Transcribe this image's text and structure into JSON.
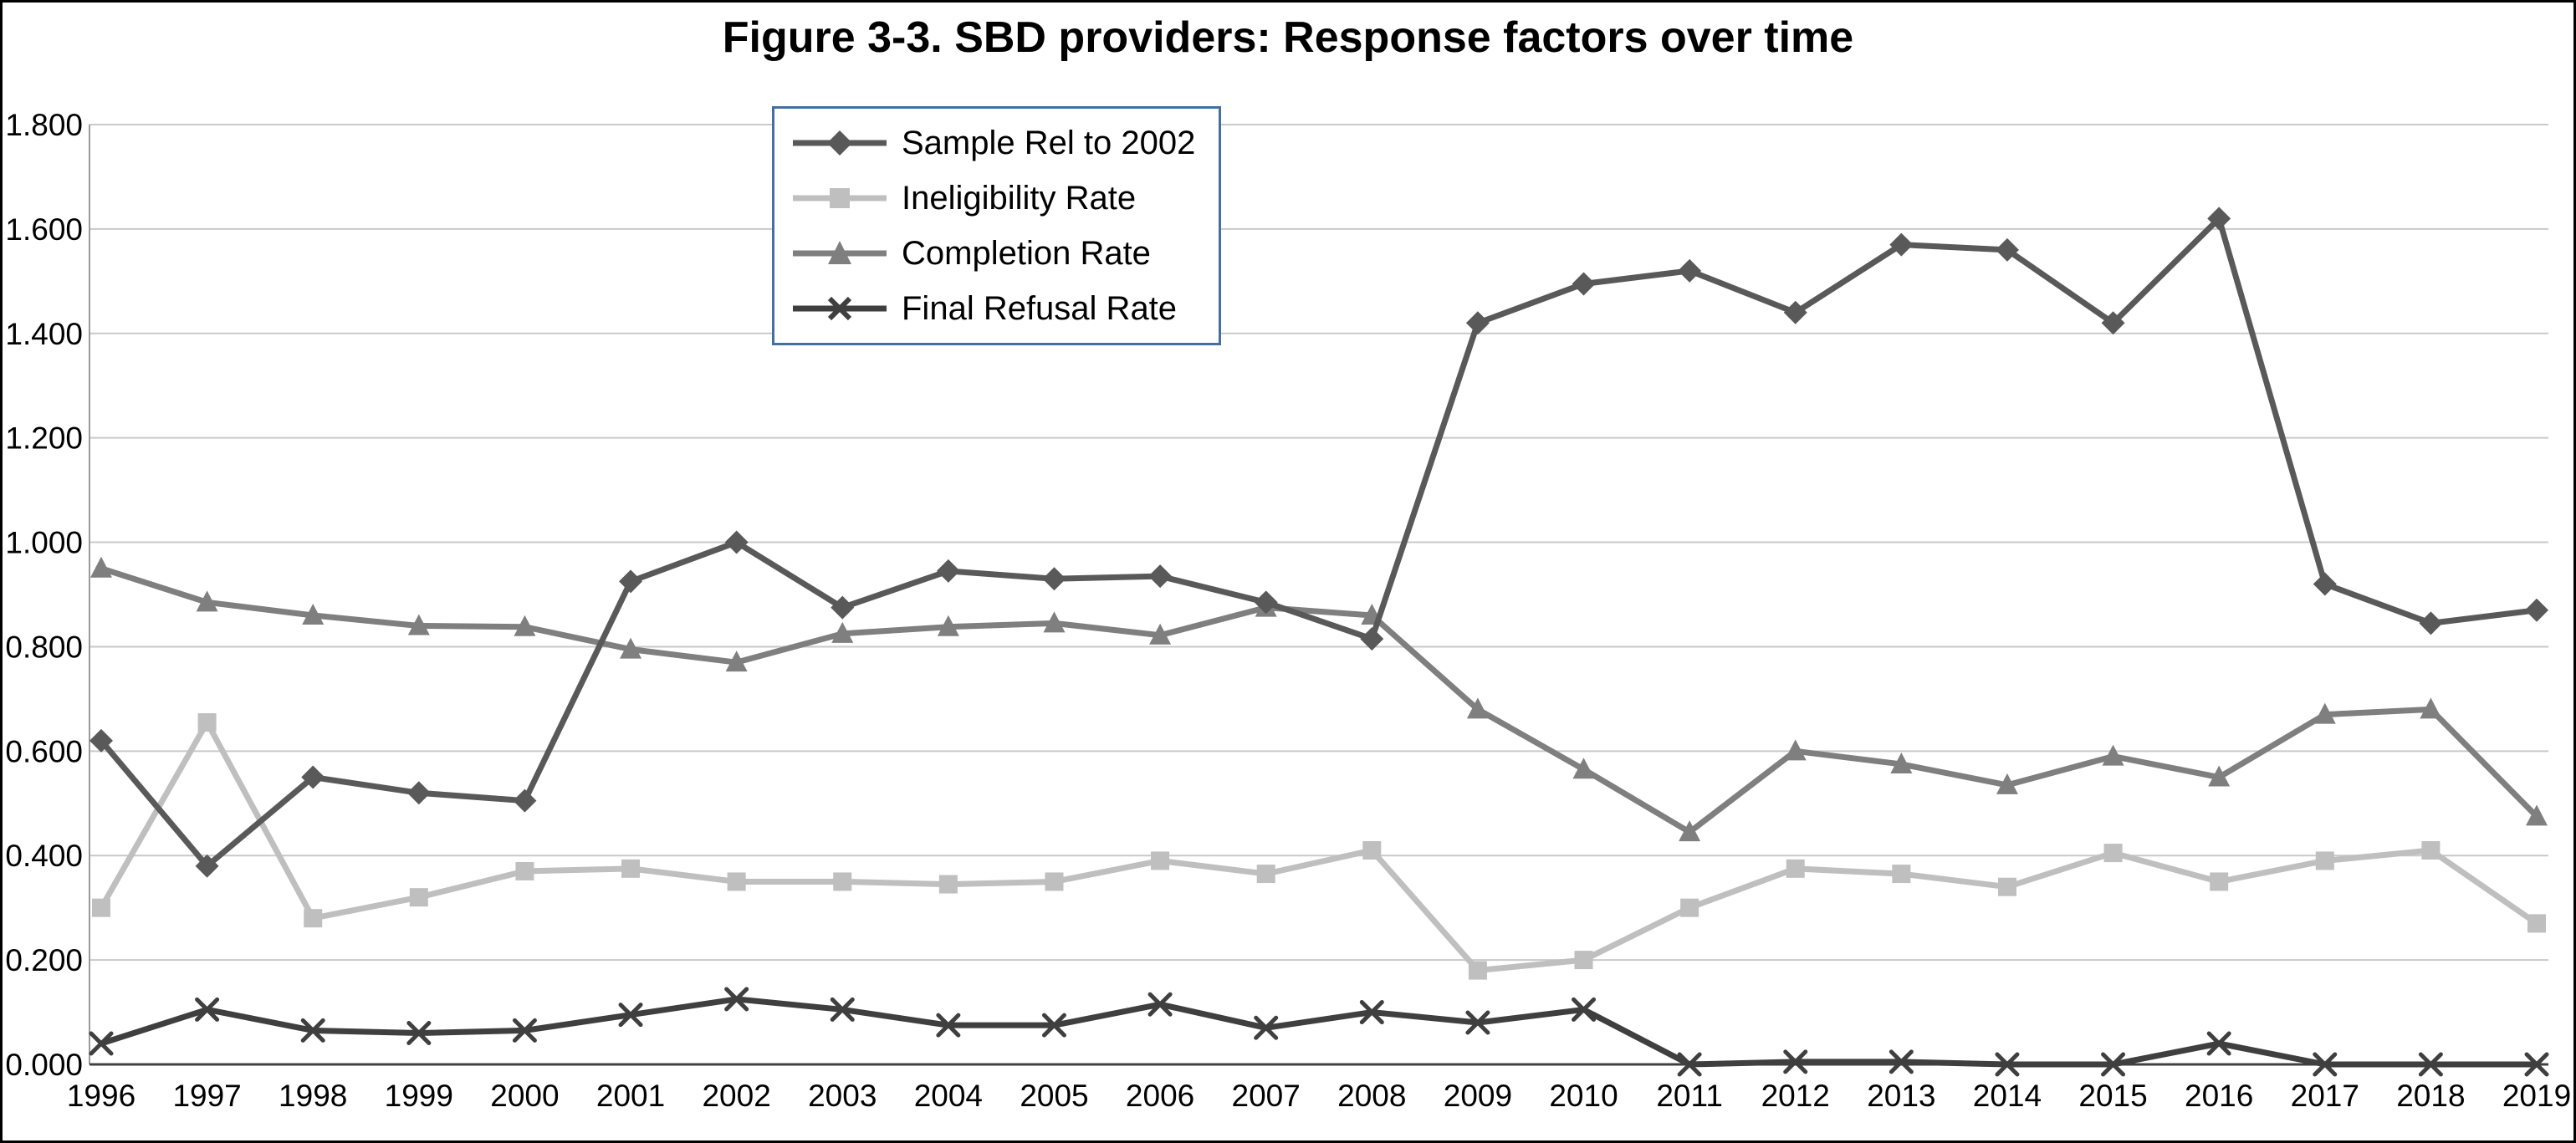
{
  "chart_data": {
    "type": "line",
    "title": "Figure 3-3. SBD providers: Response factors over time",
    "categories": [
      "1996",
      "1997",
      "1998",
      "1999",
      "2000",
      "2001",
      "2002",
      "2003",
      "2004",
      "2005",
      "2006",
      "2007",
      "2008",
      "2009",
      "2010",
      "2011",
      "2012",
      "2013",
      "2014",
      "2015",
      "2016",
      "2017",
      "2018",
      "2019"
    ],
    "series": [
      {
        "name": "Sample Rel to 2002",
        "marker": "diamond",
        "color": "#595959",
        "values": [
          0.62,
          0.38,
          0.55,
          0.52,
          0.505,
          0.925,
          1.0,
          0.875,
          0.945,
          0.93,
          0.935,
          0.885,
          0.815,
          1.42,
          1.495,
          1.52,
          1.44,
          1.57,
          1.56,
          1.42,
          1.62,
          0.92,
          0.845,
          0.87
        ]
      },
      {
        "name": "Ineligibility Rate",
        "marker": "square",
        "color": "#bfbfbf",
        "values": [
          0.3,
          0.655,
          0.28,
          0.32,
          0.37,
          0.375,
          0.35,
          0.35,
          0.345,
          0.35,
          0.39,
          0.365,
          0.41,
          0.18,
          0.2,
          0.3,
          0.375,
          0.365,
          0.34,
          0.405,
          0.35,
          0.39,
          0.41,
          0.27
        ]
      },
      {
        "name": "Completion Rate",
        "marker": "triangle",
        "color": "#7f7f7f",
        "values": [
          0.95,
          0.885,
          0.86,
          0.84,
          0.838,
          0.795,
          0.77,
          0.825,
          0.838,
          0.845,
          0.822,
          0.875,
          0.86,
          0.68,
          0.565,
          0.445,
          0.6,
          0.575,
          0.535,
          0.59,
          0.55,
          0.67,
          0.68,
          0.475
        ]
      },
      {
        "name": "Final Refusal Rate",
        "marker": "x",
        "color": "#3f3f3f",
        "values": [
          0.04,
          0.105,
          0.065,
          0.06,
          0.065,
          0.095,
          0.125,
          0.105,
          0.075,
          0.075,
          0.115,
          0.07,
          0.1,
          0.08,
          0.105,
          0.0,
          0.005,
          0.005,
          0.0,
          0.0,
          0.04,
          0.0,
          0.0,
          0.0
        ]
      }
    ],
    "ylim": [
      0,
      1.8
    ],
    "ytick_step": 0.2,
    "ytick_labels": [
      "0.000",
      "0.200",
      "0.400",
      "0.600",
      "0.800",
      "1.000",
      "1.200",
      "1.400",
      "1.600",
      "1.800"
    ],
    "grid": true,
    "legend_position": "top-center",
    "legend_border_color": "#44709d",
    "xlabel": "",
    "ylabel": ""
  }
}
